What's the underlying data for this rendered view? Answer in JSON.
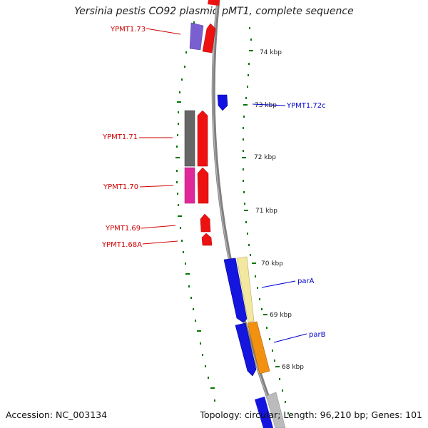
{
  "title": "Yersinia pestis CO92 plasmid pMT1, complete sequence",
  "footer": {
    "accession": "Accession: NC_003134",
    "summary": "Topology: circular; Length: 96,210 bp; Genes: 101"
  },
  "colors": {
    "backbone": "#7f7f7f",
    "ticks": "#007700",
    "forward_label": "#d00000",
    "reverse_label": "#0000cc"
  },
  "scale_ticks": [
    {
      "label": "74 kbp"
    },
    {
      "label": "73 kbp"
    },
    {
      "label": "72 kbp"
    },
    {
      "label": "71 kbp"
    },
    {
      "label": "70 kbp"
    },
    {
      "label": "69 kbp"
    },
    {
      "label": "68 kbp"
    }
  ],
  "gene_labels": [
    {
      "text": "YPMT1.73",
      "color": "#d00000"
    },
    {
      "text": "YPMT1.72c",
      "color": "#0000cc"
    },
    {
      "text": "YPMT1.71",
      "color": "#d00000"
    },
    {
      "text": "YPMT1.70",
      "color": "#d00000"
    },
    {
      "text": "YPMT1.69",
      "color": "#d00000"
    },
    {
      "text": "YPMT1.68A",
      "color": "#d00000"
    },
    {
      "text": "parA",
      "color": "#0000cc"
    },
    {
      "text": "parB",
      "color": "#0000cc"
    }
  ]
}
